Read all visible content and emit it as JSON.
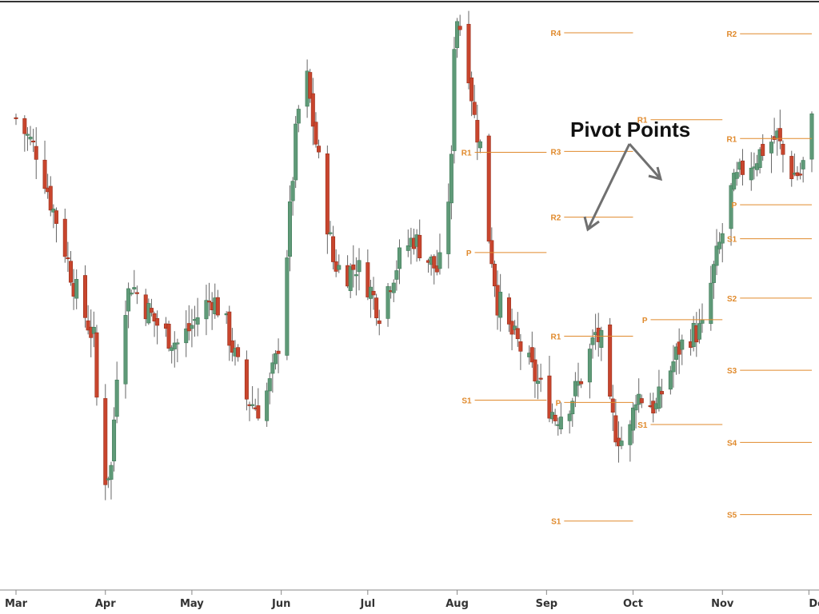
{
  "chart_data": {
    "type": "candlestick",
    "title": "",
    "xlabel": "",
    "ylabel": "",
    "grid": false,
    "legend": "none",
    "colors": {
      "up": "#5f9a78",
      "down": "#c8452d",
      "wick": "#666666",
      "pivot": "#e08a2c",
      "arrow": "#707070",
      "frame": "#333333"
    },
    "x_ticks": [
      {
        "label": "Mar",
        "day": 18
      },
      {
        "label": "Apr",
        "day": 49
      },
      {
        "label": "May",
        "day": 79
      },
      {
        "label": "Jun",
        "day": 110
      },
      {
        "label": "Jul",
        "day": 140
      },
      {
        "label": "Aug",
        "day": 171
      },
      {
        "label": "Sep",
        "day": 202
      },
      {
        "label": "Oct",
        "day": 232
      },
      {
        "label": "Nov",
        "day": 263
      },
      {
        "label": "Dec",
        "day": 293
      }
    ],
    "waypoints": [
      [
        18,
        176
      ],
      [
        22,
        172
      ],
      [
        26,
        168
      ],
      [
        30,
        158
      ],
      [
        34,
        150
      ],
      [
        38,
        140
      ],
      [
        42,
        133
      ],
      [
        45,
        128
      ],
      [
        47,
        102
      ],
      [
        49,
        98
      ],
      [
        51,
        100
      ],
      [
        54,
        132
      ],
      [
        58,
        140
      ],
      [
        62,
        136
      ],
      [
        66,
        132
      ],
      [
        70,
        129
      ],
      [
        74,
        127
      ],
      [
        78,
        130
      ],
      [
        82,
        134
      ],
      [
        86,
        137
      ],
      [
        90,
        133
      ],
      [
        94,
        124
      ],
      [
        98,
        115
      ],
      [
        102,
        113
      ],
      [
        104,
        115
      ],
      [
        106,
        118
      ],
      [
        108,
        123
      ],
      [
        110,
        131
      ],
      [
        112,
        147
      ],
      [
        115,
        172
      ],
      [
        118,
        189
      ],
      [
        121,
        175
      ],
      [
        124,
        162
      ],
      [
        128,
        145
      ],
      [
        132,
        142
      ],
      [
        136,
        144
      ],
      [
        140,
        140
      ],
      [
        144,
        134
      ],
      [
        148,
        141
      ],
      [
        152,
        147
      ],
      [
        156,
        150
      ],
      [
        160,
        146
      ],
      [
        164,
        143
      ],
      [
        166,
        145
      ],
      [
        169,
        166
      ],
      [
        170,
        193
      ],
      [
        171,
        198
      ],
      [
        174,
        192
      ],
      [
        177,
        176
      ],
      [
        179,
        170
      ],
      [
        181,
        155
      ],
      [
        183,
        146
      ],
      [
        185,
        136
      ],
      [
        187,
        135
      ],
      [
        189,
        130
      ],
      [
        193,
        126
      ],
      [
        197,
        121
      ],
      [
        201,
        116
      ],
      [
        205,
        111
      ],
      [
        209,
        113
      ],
      [
        213,
        118
      ],
      [
        217,
        125
      ],
      [
        219,
        129
      ],
      [
        221,
        127
      ],
      [
        223,
        115
      ],
      [
        226,
        108
      ],
      [
        228,
        106
      ],
      [
        231,
        108
      ],
      [
        233,
        116
      ],
      [
        236,
        115
      ],
      [
        240,
        113
      ],
      [
        244,
        120
      ],
      [
        248,
        126
      ],
      [
        252,
        129
      ],
      [
        256,
        130
      ],
      [
        260,
        143
      ],
      [
        263,
        151
      ],
      [
        266,
        160
      ],
      [
        270,
        165
      ],
      [
        274,
        167
      ],
      [
        278,
        170
      ],
      [
        282,
        172
      ],
      [
        284,
        168
      ],
      [
        286,
        165
      ],
      [
        288,
        164
      ],
      [
        290,
        164
      ],
      [
        292,
        168
      ],
      [
        294,
        175
      ]
    ],
    "pivot_levels": [
      {
        "period": "Aug",
        "levels": [
          {
            "label": "R1",
            "value": 168.6
          },
          {
            "label": "P",
            "value": 146.8
          },
          {
            "label": "S1",
            "value": 114.7
          }
        ]
      },
      {
        "period": "Sep",
        "levels": [
          {
            "label": "R4",
            "value": 194.6
          },
          {
            "label": "R3",
            "value": 168.8
          },
          {
            "label": "R2",
            "value": 154.5
          },
          {
            "label": "R1",
            "value": 128.6
          },
          {
            "label": "P",
            "value": 114.2
          },
          {
            "label": "S1",
            "value": 88.4
          }
        ]
      },
      {
        "period": "Oct",
        "levels": [
          {
            "label": "R1",
            "value": 175.7
          },
          {
            "label": "P",
            "value": 132.2
          },
          {
            "label": "S1",
            "value": 109.4
          }
        ]
      },
      {
        "period": "Nov",
        "levels": [
          {
            "label": "R2",
            "value": 194.4
          },
          {
            "label": "R1",
            "value": 171.6
          },
          {
            "label": "P",
            "value": 157.2
          },
          {
            "label": "S1",
            "value": 149.8
          },
          {
            "label": "S2",
            "value": 136.9
          },
          {
            "label": "S3",
            "value": 121.2
          },
          {
            "label": "S4",
            "value": 105.5
          },
          {
            "label": "S5",
            "value": 89.8
          }
        ]
      }
    ],
    "annotation": {
      "text": "Pivot Points"
    }
  }
}
